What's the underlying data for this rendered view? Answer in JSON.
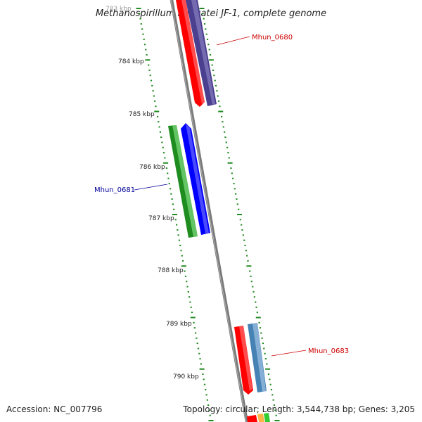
{
  "title": "Methanospirillum hungatei JF-1, complete genome",
  "footer": {
    "accession": "Accession: NC_007796",
    "summary": "Topology: circular; Length: 3,544,738 bp; Genes: 3,205"
  },
  "top_partial_label": "783 kbp",
  "ticks": [
    {
      "label": "784 kbp"
    },
    {
      "label": "785 kbp"
    },
    {
      "label": "786 kbp"
    },
    {
      "label": "787 kbp"
    },
    {
      "label": "788 kbp"
    },
    {
      "label": "789 kbp"
    },
    {
      "label": "790 kbp"
    }
  ],
  "genes": [
    {
      "label": "Mhun_0680",
      "color": "#cc0000"
    },
    {
      "label": "Mhun_0681",
      "color": "#000099"
    },
    {
      "label": "Mhun_0683",
      "color": "#cc0000"
    }
  ],
  "colors": {
    "backbone": "#808080",
    "tick": "#228b22",
    "cds_red": "#ff0000",
    "cds_purple": "#4b3f8f",
    "cds_blue": "#0000ff",
    "cds_green": "#2e9e2e",
    "cds_steelblue": "#4682b4"
  }
}
